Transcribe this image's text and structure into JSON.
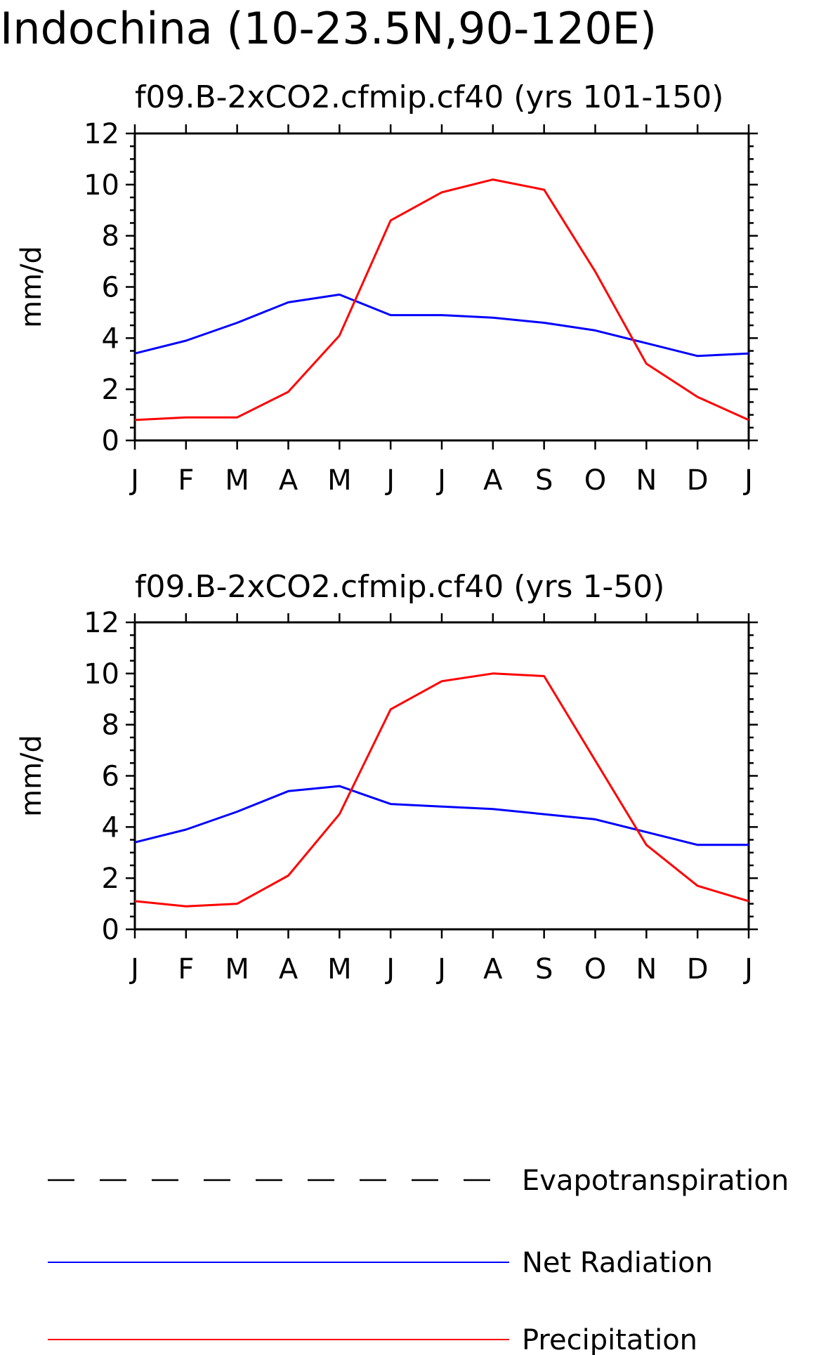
{
  "figure": {
    "title": "Indochina (10-23.5N,90-120E)"
  },
  "chart_data": [
    {
      "type": "line",
      "title": "f09.B-2xCO2.cfmip.cf40 (yrs 101-150)",
      "xlabel": "",
      "ylabel": "mm/d",
      "categories": [
        "J",
        "F",
        "M",
        "A",
        "M",
        "J",
        "J",
        "A",
        "S",
        "O",
        "N",
        "D",
        "J"
      ],
      "ylim": [
        0,
        12
      ],
      "yticks": [
        "0",
        "2",
        "4",
        "6",
        "8",
        "10",
        "12"
      ],
      "grid": false,
      "series": [
        {
          "name": "Net Radiation",
          "color": "#0000ff",
          "values": [
            3.4,
            3.9,
            4.6,
            5.4,
            5.7,
            4.9,
            4.9,
            4.8,
            4.6,
            4.3,
            3.8,
            3.3,
            3.4
          ]
        },
        {
          "name": "Precipitation",
          "color": "#ff0000",
          "values": [
            0.8,
            0.9,
            0.9,
            1.9,
            4.1,
            8.6,
            9.7,
            10.2,
            9.8,
            6.6,
            3.0,
            1.7,
            0.8
          ]
        }
      ]
    },
    {
      "type": "line",
      "title": "f09.B-2xCO2.cfmip.cf40 (yrs 1-50)",
      "xlabel": "",
      "ylabel": "mm/d",
      "categories": [
        "J",
        "F",
        "M",
        "A",
        "M",
        "J",
        "J",
        "A",
        "S",
        "O",
        "N",
        "D",
        "J"
      ],
      "ylim": [
        0,
        12
      ],
      "yticks": [
        "0",
        "2",
        "4",
        "6",
        "8",
        "10",
        "12"
      ],
      "grid": false,
      "series": [
        {
          "name": "Net Radiation",
          "color": "#0000ff",
          "values": [
            3.4,
            3.9,
            4.6,
            5.4,
            5.6,
            4.9,
            4.8,
            4.7,
            4.5,
            4.3,
            3.8,
            3.3,
            3.3
          ]
        },
        {
          "name": "Precipitation",
          "color": "#ff0000",
          "values": [
            1.1,
            0.9,
            1.0,
            2.1,
            4.5,
            8.6,
            9.7,
            10.0,
            9.9,
            6.6,
            3.3,
            1.7,
            1.1
          ]
        }
      ]
    }
  ],
  "legend": {
    "placement": "bottom",
    "items": [
      {
        "label": "Evapotranspiration",
        "color": "#000000",
        "style": "dashed"
      },
      {
        "label": "Net Radiation",
        "color": "#0000ff",
        "style": "solid"
      },
      {
        "label": "Precipitation",
        "color": "#ff0000",
        "style": "solid"
      }
    ]
  }
}
